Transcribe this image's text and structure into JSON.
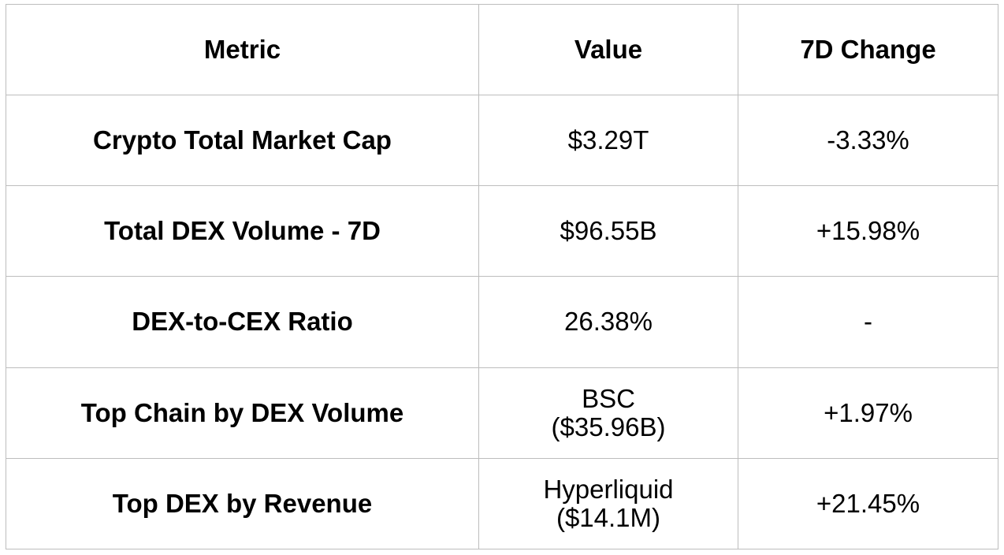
{
  "chart_data": {
    "type": "table",
    "columns": [
      "Metric",
      "Value",
      "7D Change"
    ],
    "rows": [
      {
        "metric": "Crypto Total Market Cap",
        "value": [
          "$3.29T"
        ],
        "change": "-3.33%"
      },
      {
        "metric": "Total DEX Volume - 7D",
        "value": [
          "$96.55B"
        ],
        "change": "+15.98%"
      },
      {
        "metric": "DEX-to-CEX Ratio",
        "value": [
          "26.38%"
        ],
        "change": "-"
      },
      {
        "metric": "Top Chain by DEX Volume",
        "value": [
          "BSC",
          "($35.96B)"
        ],
        "change": "+1.97%"
      },
      {
        "metric": "Top DEX by Revenue",
        "value": [
          "Hyperliquid",
          "($14.1M)"
        ],
        "change": "+21.45%"
      }
    ]
  }
}
